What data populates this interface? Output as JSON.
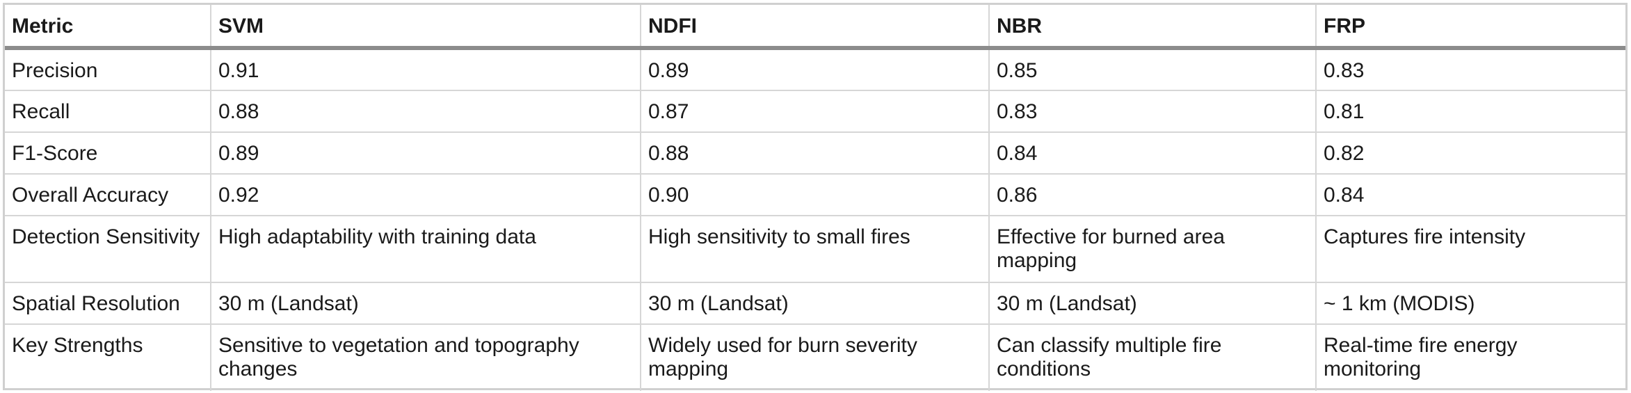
{
  "table": {
    "headers": [
      "Metric",
      "SVM",
      "NDFI",
      "NBR",
      "FRP"
    ],
    "rows": [
      [
        "Precision",
        "0.91",
        "0.89",
        "0.85",
        "0.83"
      ],
      [
        "Recall",
        "0.88",
        "0.87",
        "0.83",
        "0.81"
      ],
      [
        "F1-Score",
        "0.89",
        "0.88",
        "0.84",
        "0.82"
      ],
      [
        "Overall Accuracy",
        "0.92",
        "0.90",
        "0.86",
        "0.84"
      ],
      [
        "Detection Sensitivity",
        "High adaptability with training data",
        "High sensitivity to small fires",
        "Effective for burned area mapping",
        "Captures fire intensity"
      ],
      [
        "Spatial Resolution",
        "30 m (Landsat)",
        "30 m (Landsat)",
        "30 m (Landsat)",
        "~ 1 km (MODIS)"
      ],
      [
        "Key Strengths",
        "Sensitive to vegetation and topography changes",
        "Widely used for burn severity mapping",
        "Can classify multiple fire conditions",
        "Real-time fire energy monitoring"
      ]
    ]
  }
}
